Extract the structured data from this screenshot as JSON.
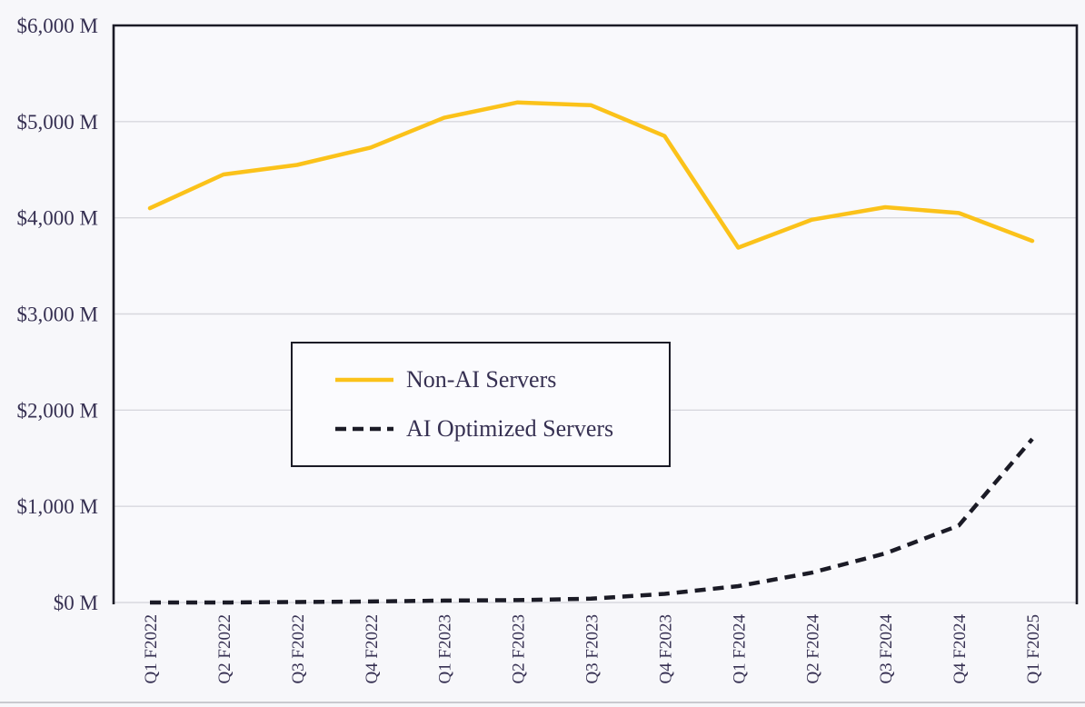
{
  "chart_data": {
    "type": "line",
    "title": "",
    "xlabel": "",
    "ylabel": "",
    "categories": [
      "Q1 F2022",
      "Q2 F2022",
      "Q3 F2022",
      "Q4 F2022",
      "Q1 F2023",
      "Q2 F2023",
      "Q3 F2023",
      "Q4 F2023",
      "Q1 F2024",
      "Q2 F2024",
      "Q3 F2024",
      "Q4 F2024",
      "Q1 F2025"
    ],
    "series": [
      {
        "name": "Non-AI Servers",
        "color": "#FBC21A",
        "line_style": "solid",
        "marker_dash": "",
        "values": [
          4100,
          4450,
          4550,
          4730,
          5040,
          5200,
          5170,
          4850,
          3690,
          3980,
          4110,
          4050,
          3760
        ]
      },
      {
        "name": "AI Optimized Servers",
        "color": "#1B1B26",
        "line_style": "dashed",
        "marker_dash": "12 7",
        "values": [
          0,
          0,
          5,
          10,
          20,
          25,
          40,
          90,
          170,
          310,
          510,
          800,
          1700
        ]
      }
    ],
    "ylim": [
      0,
      6000
    ],
    "y_ticks": [
      {
        "value": 0,
        "label": "$0 M"
      },
      {
        "value": 1000,
        "label": "$1,000 M"
      },
      {
        "value": 2000,
        "label": "$2,000 M"
      },
      {
        "value": 3000,
        "label": "$3,000 M"
      },
      {
        "value": 4000,
        "label": "$4,000 M"
      },
      {
        "value": 5000,
        "label": "$5,000 M"
      },
      {
        "value": 6000,
        "label": "$6,000 M"
      }
    ],
    "grid": true,
    "legend_position": "inside-center-left",
    "axis_text_color": "#363052",
    "gridline_color": "#D8D8DE",
    "axis_border_color": "#1B1B26",
    "plot_background": "#F9F9FC"
  }
}
